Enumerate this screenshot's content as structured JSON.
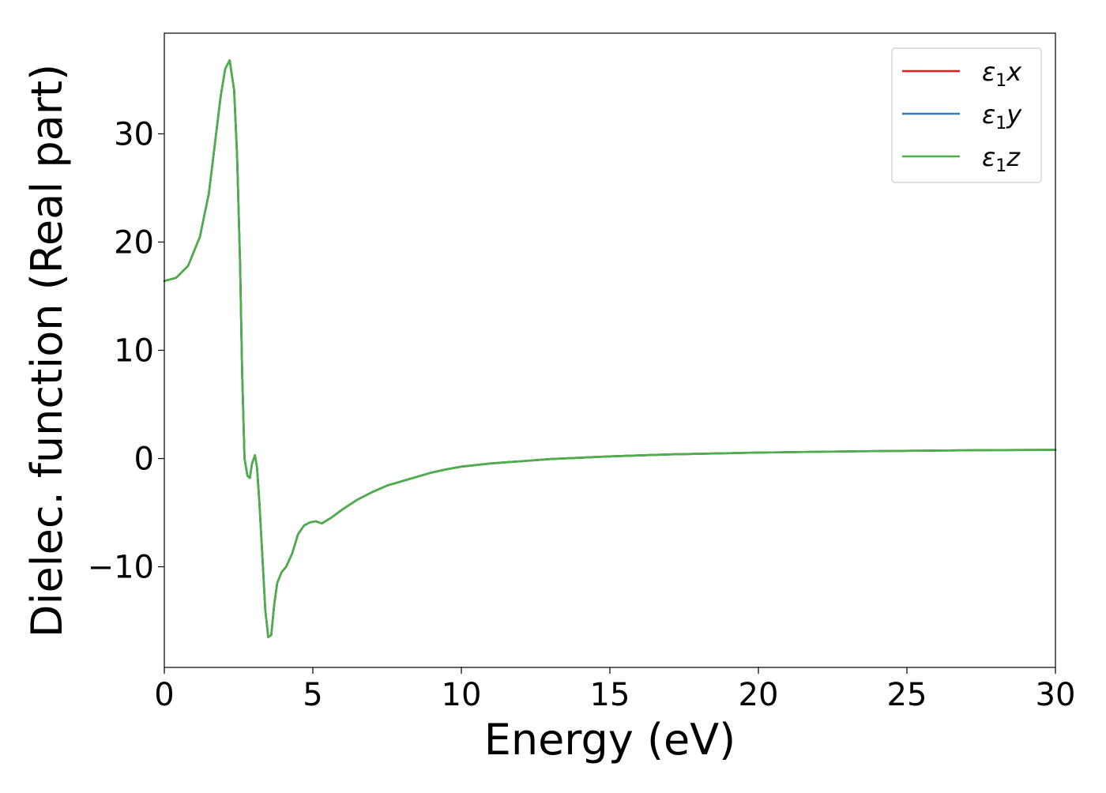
{
  "chart_data": {
    "type": "line",
    "title": "",
    "xlabel": "Energy (eV)",
    "ylabel": "Dielec. function (Real part)",
    "xlim": [
      0,
      30
    ],
    "ylim": [
      -19.3,
      39.3
    ],
    "xticks": [
      0,
      5,
      10,
      15,
      20,
      25,
      30
    ],
    "xtick_labels": [
      "0",
      "5",
      "10",
      "15",
      "20",
      "25",
      "30"
    ],
    "yticks": [
      -10,
      0,
      10,
      20,
      30
    ],
    "ytick_labels": [
      "−10",
      "0",
      "10",
      "20",
      "30"
    ],
    "grid": false,
    "legend": {
      "placement": "top-right",
      "entries": [
        {
          "main": "ε",
          "sub": "1",
          "var": "x",
          "color": "#e41a1c"
        },
        {
          "main": "ε",
          "sub": "1",
          "var": "y",
          "color": "#377eb8"
        },
        {
          "main": "ε",
          "sub": "1",
          "var": "z",
          "color": "#4daf4a"
        }
      ]
    },
    "series": [
      {
        "name": "ε1x",
        "color": "#e41a1c",
        "points": [
          [
            0,
            16.4
          ],
          [
            0.4,
            16.7
          ],
          [
            0.8,
            17.8
          ],
          [
            1.2,
            20.5
          ],
          [
            1.5,
            24.5
          ],
          [
            1.7,
            29.0
          ],
          [
            1.9,
            33.5
          ],
          [
            2.05,
            36.0
          ],
          [
            2.2,
            36.8
          ],
          [
            2.35,
            34.0
          ],
          [
            2.45,
            28.0
          ],
          [
            2.55,
            18.0
          ],
          [
            2.62,
            8.0
          ],
          [
            2.7,
            0.0
          ],
          [
            2.8,
            -1.6
          ],
          [
            2.88,
            -1.8
          ],
          [
            2.95,
            -0.5
          ],
          [
            3.05,
            0.3
          ],
          [
            3.12,
            -0.8
          ],
          [
            3.2,
            -4.0
          ],
          [
            3.3,
            -9.0
          ],
          [
            3.4,
            -14.0
          ],
          [
            3.5,
            -16.5
          ],
          [
            3.6,
            -16.3
          ],
          [
            3.7,
            -13.5
          ],
          [
            3.8,
            -11.5
          ],
          [
            3.95,
            -10.5
          ],
          [
            4.1,
            -10.0
          ],
          [
            4.3,
            -8.8
          ],
          [
            4.5,
            -7.0
          ],
          [
            4.7,
            -6.2
          ],
          [
            4.9,
            -5.9
          ],
          [
            5.1,
            -5.8
          ],
          [
            5.3,
            -6.0
          ],
          [
            5.6,
            -5.5
          ],
          [
            6.0,
            -4.7
          ],
          [
            6.5,
            -3.8
          ],
          [
            7.0,
            -3.1
          ],
          [
            7.5,
            -2.5
          ],
          [
            8.0,
            -2.1
          ],
          [
            8.5,
            -1.7
          ],
          [
            9.0,
            -1.3
          ],
          [
            9.5,
            -1.0
          ],
          [
            10,
            -0.75
          ],
          [
            11,
            -0.45
          ],
          [
            12,
            -0.25
          ],
          [
            13,
            -0.05
          ],
          [
            15,
            0.2
          ],
          [
            17,
            0.38
          ],
          [
            20,
            0.55
          ],
          [
            23,
            0.66
          ],
          [
            26,
            0.74
          ],
          [
            28,
            0.78
          ],
          [
            30,
            0.8
          ]
        ]
      },
      {
        "name": "ε1y",
        "color": "#377eb8",
        "points": [
          [
            0,
            16.4
          ],
          [
            0.4,
            16.7
          ],
          [
            0.8,
            17.8
          ],
          [
            1.2,
            20.5
          ],
          [
            1.5,
            24.5
          ],
          [
            1.7,
            29.0
          ],
          [
            1.9,
            33.5
          ],
          [
            2.05,
            36.0
          ],
          [
            2.2,
            36.8
          ],
          [
            2.35,
            34.0
          ],
          [
            2.45,
            28.0
          ],
          [
            2.55,
            18.0
          ],
          [
            2.62,
            8.0
          ],
          [
            2.7,
            0.0
          ],
          [
            2.8,
            -1.6
          ],
          [
            2.88,
            -1.8
          ],
          [
            2.95,
            -0.5
          ],
          [
            3.05,
            0.3
          ],
          [
            3.12,
            -0.8
          ],
          [
            3.2,
            -4.0
          ],
          [
            3.3,
            -9.0
          ],
          [
            3.4,
            -14.0
          ],
          [
            3.5,
            -16.5
          ],
          [
            3.6,
            -16.3
          ],
          [
            3.7,
            -13.5
          ],
          [
            3.8,
            -11.5
          ],
          [
            3.95,
            -10.5
          ],
          [
            4.1,
            -10.0
          ],
          [
            4.3,
            -8.8
          ],
          [
            4.5,
            -7.0
          ],
          [
            4.7,
            -6.2
          ],
          [
            4.9,
            -5.9
          ],
          [
            5.1,
            -5.8
          ],
          [
            5.3,
            -6.0
          ],
          [
            5.6,
            -5.5
          ],
          [
            6.0,
            -4.7
          ],
          [
            6.5,
            -3.8
          ],
          [
            7.0,
            -3.1
          ],
          [
            7.5,
            -2.5
          ],
          [
            8.0,
            -2.1
          ],
          [
            8.5,
            -1.7
          ],
          [
            9.0,
            -1.3
          ],
          [
            9.5,
            -1.0
          ],
          [
            10,
            -0.75
          ],
          [
            11,
            -0.45
          ],
          [
            12,
            -0.25
          ],
          [
            13,
            -0.05
          ],
          [
            15,
            0.2
          ],
          [
            17,
            0.38
          ],
          [
            20,
            0.55
          ],
          [
            23,
            0.66
          ],
          [
            26,
            0.74
          ],
          [
            28,
            0.78
          ],
          [
            30,
            0.8
          ]
        ]
      },
      {
        "name": "ε1z",
        "color": "#4daf4a",
        "points": [
          [
            0,
            16.4
          ],
          [
            0.4,
            16.7
          ],
          [
            0.8,
            17.8
          ],
          [
            1.2,
            20.5
          ],
          [
            1.5,
            24.5
          ],
          [
            1.7,
            29.0
          ],
          [
            1.9,
            33.5
          ],
          [
            2.05,
            36.0
          ],
          [
            2.2,
            36.8
          ],
          [
            2.35,
            34.0
          ],
          [
            2.45,
            28.0
          ],
          [
            2.55,
            18.0
          ],
          [
            2.62,
            8.0
          ],
          [
            2.7,
            0.0
          ],
          [
            2.8,
            -1.6
          ],
          [
            2.88,
            -1.8
          ],
          [
            2.95,
            -0.5
          ],
          [
            3.05,
            0.3
          ],
          [
            3.12,
            -0.8
          ],
          [
            3.2,
            -4.0
          ],
          [
            3.3,
            -9.0
          ],
          [
            3.4,
            -14.0
          ],
          [
            3.5,
            -16.5
          ],
          [
            3.6,
            -16.3
          ],
          [
            3.7,
            -13.5
          ],
          [
            3.8,
            -11.5
          ],
          [
            3.95,
            -10.5
          ],
          [
            4.1,
            -10.0
          ],
          [
            4.3,
            -8.8
          ],
          [
            4.5,
            -7.0
          ],
          [
            4.7,
            -6.2
          ],
          [
            4.9,
            -5.9
          ],
          [
            5.1,
            -5.8
          ],
          [
            5.3,
            -6.0
          ],
          [
            5.6,
            -5.5
          ],
          [
            6.0,
            -4.7
          ],
          [
            6.5,
            -3.8
          ],
          [
            7.0,
            -3.1
          ],
          [
            7.5,
            -2.5
          ],
          [
            8.0,
            -2.1
          ],
          [
            8.5,
            -1.7
          ],
          [
            9.0,
            -1.3
          ],
          [
            9.5,
            -1.0
          ],
          [
            10,
            -0.75
          ],
          [
            11,
            -0.45
          ],
          [
            12,
            -0.25
          ],
          [
            13,
            -0.05
          ],
          [
            15,
            0.2
          ],
          [
            17,
            0.38
          ],
          [
            20,
            0.55
          ],
          [
            23,
            0.66
          ],
          [
            26,
            0.74
          ],
          [
            28,
            0.78
          ],
          [
            30,
            0.8
          ]
        ]
      }
    ]
  }
}
